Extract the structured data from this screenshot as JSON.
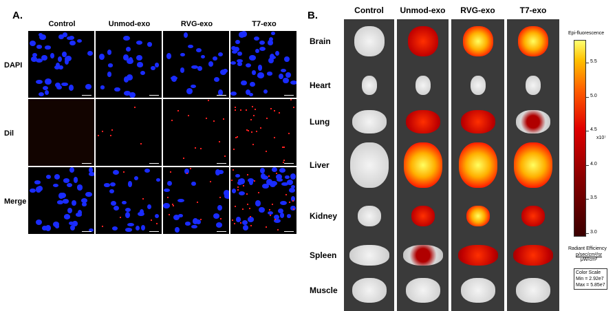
{
  "panel_a": {
    "label": "A.",
    "columns": [
      "Control",
      "Unmod-exo",
      "RVG-exo",
      "T7-exo"
    ],
    "rows": [
      "DAPI",
      "Dil",
      "Merge"
    ]
  },
  "panel_b": {
    "label": "B.",
    "columns": [
      "Control",
      "Unmod-exo",
      "RVG-exo",
      "T7-exo"
    ],
    "organs": [
      "Brain",
      "Heart",
      "Lung",
      "Liver",
      "Kidney",
      "Spleen",
      "Muscle"
    ]
  },
  "colorbar": {
    "title": "Epi-fluorescence",
    "ticks": [
      "5.5",
      "5.0",
      "4.5",
      "4.0",
      "3.5",
      "3.0"
    ],
    "multiplier": "x10⁷",
    "unit_label": "Radiant Efficiency",
    "unit_num": "p/sec/cm²/sr",
    "unit_den": "μW/cm²",
    "scale_title": "Color Scale",
    "min": "Min = 2.92e7",
    "max": "Max = 5.85e7",
    "colors": [
      "#3a0000",
      "#c00000",
      "#ff3000",
      "#ffa000",
      "#ffff60"
    ]
  }
}
